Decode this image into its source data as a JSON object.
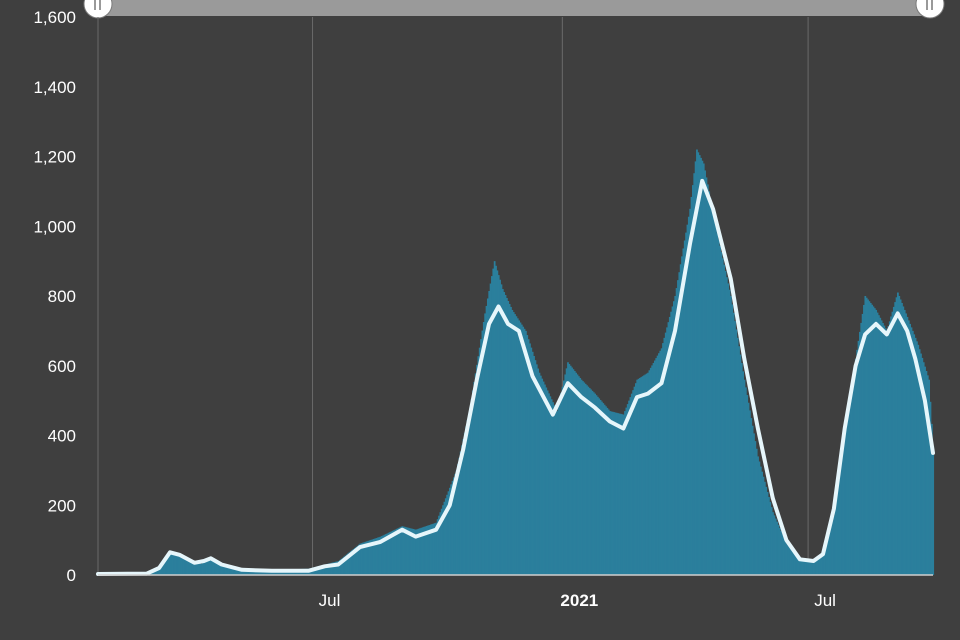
{
  "chart_data": {
    "type": "bar",
    "title": "",
    "xlabel": "",
    "ylabel": "",
    "ylim": [
      0,
      1600
    ],
    "yticks": [
      "0",
      "200",
      "400",
      "600",
      "800",
      "1,000",
      "1,200",
      "1,400",
      "1,600"
    ],
    "x_tick_labels": [
      {
        "label": "Jul",
        "date": "2020-07-01",
        "bold": false
      },
      {
        "label": "2021",
        "date": "2021-01-01",
        "bold": true
      },
      {
        "label": "Jul",
        "date": "2021-07-01",
        "bold": false
      }
    ],
    "x_range": [
      "2020-01-25",
      "2021-10-01"
    ],
    "grid": "vertical",
    "bar_color": "#2b7f9c",
    "line_color": "#e6f6fb",
    "series": [
      {
        "type": "bar",
        "note": "daily values",
        "points": [
          [
            "2020-01-25",
            3
          ],
          [
            "2020-03-01",
            5
          ],
          [
            "2020-03-10",
            25
          ],
          [
            "2020-03-18",
            65
          ],
          [
            "2020-03-25",
            60
          ],
          [
            "2020-04-01",
            40
          ],
          [
            "2020-04-10",
            32
          ],
          [
            "2020-04-15",
            50
          ],
          [
            "2020-04-25",
            35
          ],
          [
            "2020-05-10",
            18
          ],
          [
            "2020-06-01",
            15
          ],
          [
            "2020-06-28",
            18
          ],
          [
            "2020-07-10",
            30
          ],
          [
            "2020-07-20",
            40
          ],
          [
            "2020-08-05",
            90
          ],
          [
            "2020-08-20",
            110
          ],
          [
            "2020-09-05",
            140
          ],
          [
            "2020-09-15",
            130
          ],
          [
            "2020-09-30",
            150
          ],
          [
            "2020-10-15",
            300
          ],
          [
            "2020-10-25",
            480
          ],
          [
            "2020-11-05",
            750
          ],
          [
            "2020-11-12",
            900
          ],
          [
            "2020-11-18",
            820
          ],
          [
            "2020-11-25",
            760
          ],
          [
            "2020-12-05",
            700
          ],
          [
            "2020-12-15",
            580
          ],
          [
            "2020-12-28",
            470
          ],
          [
            "2021-01-05",
            610
          ],
          [
            "2021-01-15",
            560
          ],
          [
            "2021-01-25",
            520
          ],
          [
            "2021-02-05",
            470
          ],
          [
            "2021-02-15",
            460
          ],
          [
            "2021-02-25",
            560
          ],
          [
            "2021-03-05",
            580
          ],
          [
            "2021-03-15",
            650
          ],
          [
            "2021-03-25",
            800
          ],
          [
            "2021-04-05",
            1050
          ],
          [
            "2021-04-10",
            1220
          ],
          [
            "2021-04-15",
            1180
          ],
          [
            "2021-04-25",
            980
          ],
          [
            "2021-05-05",
            800
          ],
          [
            "2021-05-15",
            560
          ],
          [
            "2021-05-25",
            340
          ],
          [
            "2021-06-05",
            180
          ],
          [
            "2021-06-15",
            90
          ],
          [
            "2021-06-25",
            45
          ],
          [
            "2021-07-05",
            40
          ],
          [
            "2021-07-12",
            60
          ],
          [
            "2021-07-20",
            170
          ],
          [
            "2021-07-28",
            420
          ],
          [
            "2021-08-05",
            620
          ],
          [
            "2021-08-12",
            800
          ],
          [
            "2021-08-20",
            760
          ],
          [
            "2021-08-28",
            700
          ],
          [
            "2021-09-05",
            810
          ],
          [
            "2021-09-12",
            740
          ],
          [
            "2021-09-20",
            660
          ],
          [
            "2021-09-28",
            560
          ],
          [
            "2021-10-01",
            370
          ]
        ]
      },
      {
        "type": "line",
        "note": "7-day average",
        "points": [
          [
            "2020-01-25",
            3
          ],
          [
            "2020-03-01",
            4
          ],
          [
            "2020-03-10",
            20
          ],
          [
            "2020-03-18",
            65
          ],
          [
            "2020-03-25",
            58
          ],
          [
            "2020-04-05",
            35
          ],
          [
            "2020-04-12",
            40
          ],
          [
            "2020-04-17",
            48
          ],
          [
            "2020-04-25",
            30
          ],
          [
            "2020-05-10",
            15
          ],
          [
            "2020-06-01",
            12
          ],
          [
            "2020-06-28",
            12
          ],
          [
            "2020-07-10",
            25
          ],
          [
            "2020-07-20",
            30
          ],
          [
            "2020-08-05",
            80
          ],
          [
            "2020-08-20",
            95
          ],
          [
            "2020-09-05",
            130
          ],
          [
            "2020-09-15",
            110
          ],
          [
            "2020-09-30",
            130
          ],
          [
            "2020-10-10",
            200
          ],
          [
            "2020-10-20",
            360
          ],
          [
            "2020-10-30",
            560
          ],
          [
            "2020-11-08",
            720
          ],
          [
            "2020-11-15",
            770
          ],
          [
            "2020-11-22",
            720
          ],
          [
            "2020-11-30",
            700
          ],
          [
            "2020-12-10",
            570
          ],
          [
            "2020-12-25",
            460
          ],
          [
            "2021-01-05",
            550
          ],
          [
            "2021-01-15",
            510
          ],
          [
            "2021-01-25",
            480
          ],
          [
            "2021-02-05",
            440
          ],
          [
            "2021-02-15",
            420
          ],
          [
            "2021-02-25",
            510
          ],
          [
            "2021-03-05",
            520
          ],
          [
            "2021-03-15",
            550
          ],
          [
            "2021-03-25",
            700
          ],
          [
            "2021-04-05",
            950
          ],
          [
            "2021-04-14",
            1130
          ],
          [
            "2021-04-22",
            1050
          ],
          [
            "2021-05-05",
            850
          ],
          [
            "2021-05-15",
            620
          ],
          [
            "2021-05-25",
            420
          ],
          [
            "2021-06-05",
            220
          ],
          [
            "2021-06-15",
            100
          ],
          [
            "2021-06-25",
            45
          ],
          [
            "2021-07-05",
            40
          ],
          [
            "2021-07-12",
            60
          ],
          [
            "2021-07-20",
            190
          ],
          [
            "2021-07-28",
            420
          ],
          [
            "2021-08-05",
            600
          ],
          [
            "2021-08-12",
            690
          ],
          [
            "2021-08-20",
            720
          ],
          [
            "2021-08-28",
            690
          ],
          [
            "2021-09-05",
            750
          ],
          [
            "2021-09-12",
            700
          ],
          [
            "2021-09-18",
            620
          ],
          [
            "2021-09-25",
            500
          ],
          [
            "2021-10-01",
            350
          ]
        ]
      }
    ]
  }
}
